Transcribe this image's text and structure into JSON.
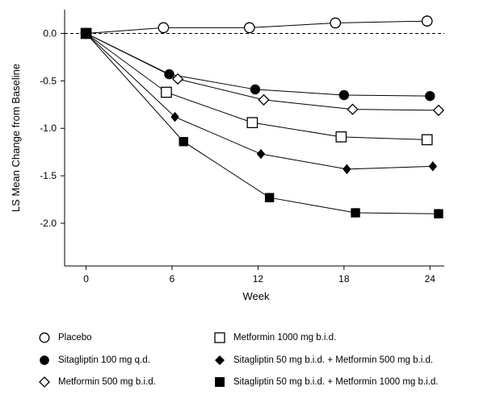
{
  "chart_data": {
    "type": "line",
    "xlabel": "Week",
    "ylabel": "LS Mean Change from Baseline",
    "xticks": [
      0,
      6,
      12,
      18,
      24
    ],
    "yticks": [
      0.0,
      -0.5,
      -1.0,
      -1.5,
      -2.0
    ],
    "ytick_labels": [
      "0.0",
      "-0.5",
      "-1.0",
      "-1.5",
      "-2.0"
    ],
    "xlim": [
      -1.5,
      25
    ],
    "ylim": [
      -2.45,
      0.25
    ],
    "reference_line_y": 0.0,
    "series": [
      {
        "name": "Placebo",
        "marker": "open-circle",
        "x": [
          0,
          5.4,
          11.4,
          17.4,
          23.8
        ],
        "y": [
          0.0,
          0.06,
          0.06,
          0.11,
          0.13
        ],
        "err": [
          0,
          0.04,
          0.05,
          0.05,
          0.06
        ]
      },
      {
        "name": "Sitagliptin 100 mg q.d.",
        "marker": "filled-circle",
        "x": [
          0,
          5.8,
          11.8,
          18.0,
          24.0
        ],
        "y": [
          0.0,
          -0.43,
          -0.59,
          -0.65,
          -0.66
        ],
        "err": [
          0,
          0.04,
          0.05,
          0.05,
          0.05
        ]
      },
      {
        "name": "Metformin 500 mg b.i.d.",
        "marker": "open-diamond",
        "x": [
          0,
          6.4,
          12.4,
          18.6,
          24.6
        ],
        "y": [
          0.0,
          -0.48,
          -0.7,
          -0.8,
          -0.81
        ],
        "err": [
          0,
          0.04,
          0.05,
          0.05,
          0.05
        ]
      },
      {
        "name": "Metformin 1000 mg b.i.d.",
        "marker": "open-square",
        "x": [
          0,
          5.6,
          11.6,
          17.8,
          23.8
        ],
        "y": [
          0.0,
          -0.62,
          -0.94,
          -1.09,
          -1.12
        ],
        "err": [
          0,
          0.04,
          0.05,
          0.05,
          0.05
        ]
      },
      {
        "name": "Sitagliptin 50 mg b.i.d. + Metformin 500 mg b.i.d.",
        "marker": "filled-diamond",
        "x": [
          0,
          6.2,
          12.2,
          18.2,
          24.2
        ],
        "y": [
          0.0,
          -0.88,
          -1.27,
          -1.43,
          -1.4
        ],
        "err": [
          0,
          0.04,
          0.05,
          0.05,
          0.05
        ]
      },
      {
        "name": "Sitagliptin 50 mg b.i.d. + Metformin 1000 mg b.i.d.",
        "marker": "filled-square",
        "x": [
          0,
          6.8,
          12.8,
          18.8,
          24.6
        ],
        "y": [
          0.0,
          -1.14,
          -1.73,
          -1.89,
          -1.9
        ],
        "err": [
          0,
          0.04,
          0.05,
          0.05,
          0.05
        ]
      }
    ],
    "legend": {
      "placement": "bottom",
      "left_column": [
        "Placebo",
        "Sitagliptin 100 mg q.d.",
        "Metformin 500 mg b.i.d."
      ],
      "right_column": [
        "Metformin 1000 mg b.i.d.",
        "Sitagliptin 50 mg b.i.d. + Metformin 500 mg b.i.d.",
        "Sitagliptin 50 mg b.i.d. + Metformin 1000 mg b.i.d."
      ]
    },
    "grid": false
  }
}
